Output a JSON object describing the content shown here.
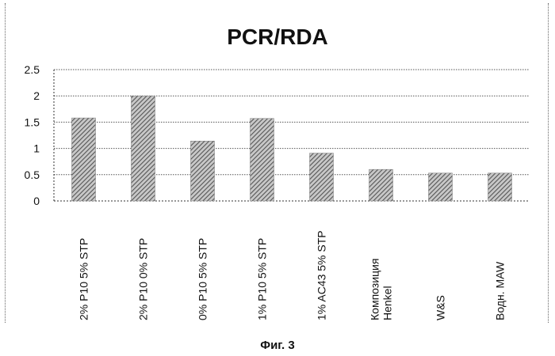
{
  "chart_data": {
    "type": "bar",
    "title": "PCR/RDA",
    "categories": [
      [
        "2% P10 5% STP"
      ],
      [
        "2% P10 0% STP"
      ],
      [
        "0% P10 5% STP"
      ],
      [
        "1% P10 5% STP"
      ],
      [
        "1% AC43 5% STP"
      ],
      [
        "Композиция",
        "Henkel"
      ],
      [
        "W&S"
      ],
      [
        "Водн. MAW"
      ]
    ],
    "values": [
      1.58,
      2.0,
      1.14,
      1.57,
      0.91,
      0.6,
      0.53,
      0.53
    ],
    "ylim": [
      0,
      2.5
    ],
    "yticks": [
      "0",
      "0.5",
      "1",
      "1.5",
      "2",
      "2.5"
    ],
    "ytick_values": [
      0,
      0.5,
      1,
      1.5,
      2,
      2.5
    ],
    "grid": true,
    "bar_color": "#9a9a9a",
    "bar_pattern": "diagonal hatch"
  },
  "caption": "Фиг. 3"
}
